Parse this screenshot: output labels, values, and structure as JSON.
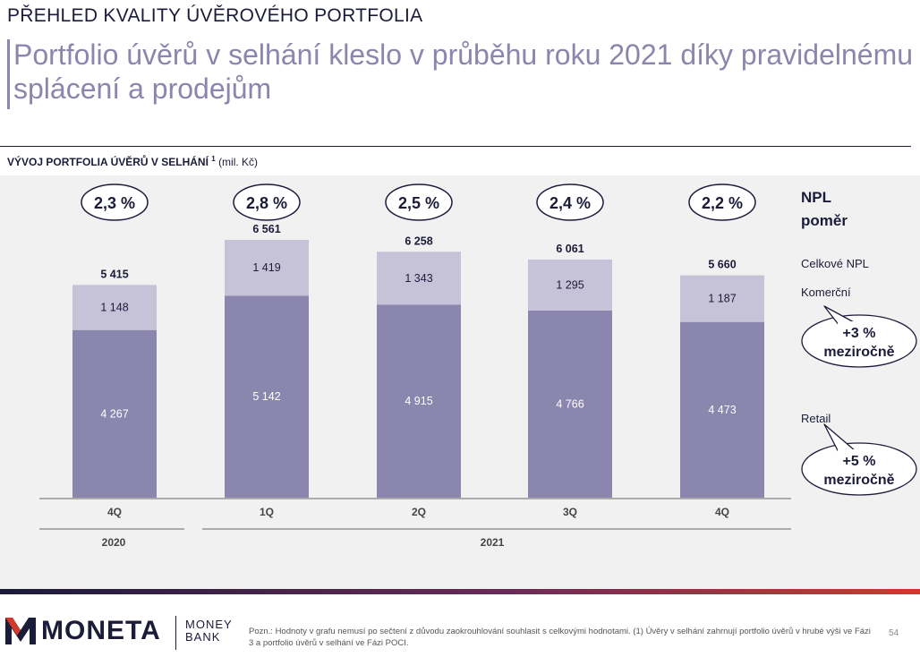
{
  "header": {
    "section_title": "PŘEHLED KVALITY ÚVĚROVÉHO PORTFOLIA",
    "headline": "Portfolio úvěrů v selhání kleslo v průběhu roku 2021 díky pravidelnému splácení a prodejům"
  },
  "chart_header": {
    "label": "VÝVOJ PORTFOLIA ÚVĚRŮ V SELHÁNÍ",
    "footnote_mark": "1",
    "unit": "(mil. Kč)"
  },
  "chart_data": {
    "type": "bar",
    "stacked": true,
    "categories": [
      "4Q",
      "1Q",
      "2Q",
      "3Q",
      "4Q"
    ],
    "years": [
      {
        "label": "2020",
        "categories": [
          "4Q"
        ]
      },
      {
        "label": "2021",
        "categories": [
          "1Q",
          "2Q",
          "3Q",
          "4Q"
        ]
      }
    ],
    "series": [
      {
        "name": "Retail",
        "values": [
          4267,
          5142,
          4915,
          4766,
          4473
        ],
        "labels": [
          "4 267",
          "5 142",
          "4 915",
          "4 766",
          "4 473"
        ],
        "color": "#8a86ad"
      },
      {
        "name": "Komerční",
        "values": [
          1148,
          1419,
          1343,
          1295,
          1187
        ],
        "labels": [
          "1 148",
          "1 419",
          "1 343",
          "1 295",
          "1 187"
        ],
        "color": "#c6c3d9"
      }
    ],
    "totals": {
      "name": "Celkové NPL",
      "values": [
        5415,
        6561,
        6258,
        6061,
        5660
      ],
      "labels": [
        "5 415",
        "6 561",
        "6 258",
        "6 061",
        "5 660"
      ]
    },
    "npl_ratio": {
      "title_line1": "NPL",
      "title_line2": "poměr",
      "values": [
        "2,3 %",
        "2,8 %",
        "2,5 %",
        "2,4 %",
        "2,2 %"
      ]
    },
    "ylim": [
      0,
      6700
    ],
    "grid": false,
    "legend_position": "right"
  },
  "legend": {
    "total_label": "Celkové NPL",
    "commercial_label": "Komerční",
    "retail_label": "Retail",
    "commercial_callout": {
      "line1": "+3 %",
      "line2": "meziročně"
    },
    "retail_callout": {
      "line1": "+5 %",
      "line2": "meziročně"
    }
  },
  "footer": {
    "logo_text": "MONETA",
    "logo_sub_line1": "MONEY",
    "logo_sub_line2": "BANK",
    "note": "Pozn.: Hodnoty v grafu nemusí po sečtení z důvodu zaokrouhlování souhlasit s celkovými hodnotami. (1) Úvěry v selhání zahrnují portfolio úvěrů v hrubé výši ve Fázi 3 a portfolio úvěrů v selhání ve Fázi POCI.",
    "page_number": "54"
  },
  "colors": {
    "navy": "#1b1b3a",
    "retail": "#8a86ad",
    "commercial": "#c6c3d9",
    "chart_background": "#f1f1f1",
    "brand_red": "#d13a2a"
  }
}
